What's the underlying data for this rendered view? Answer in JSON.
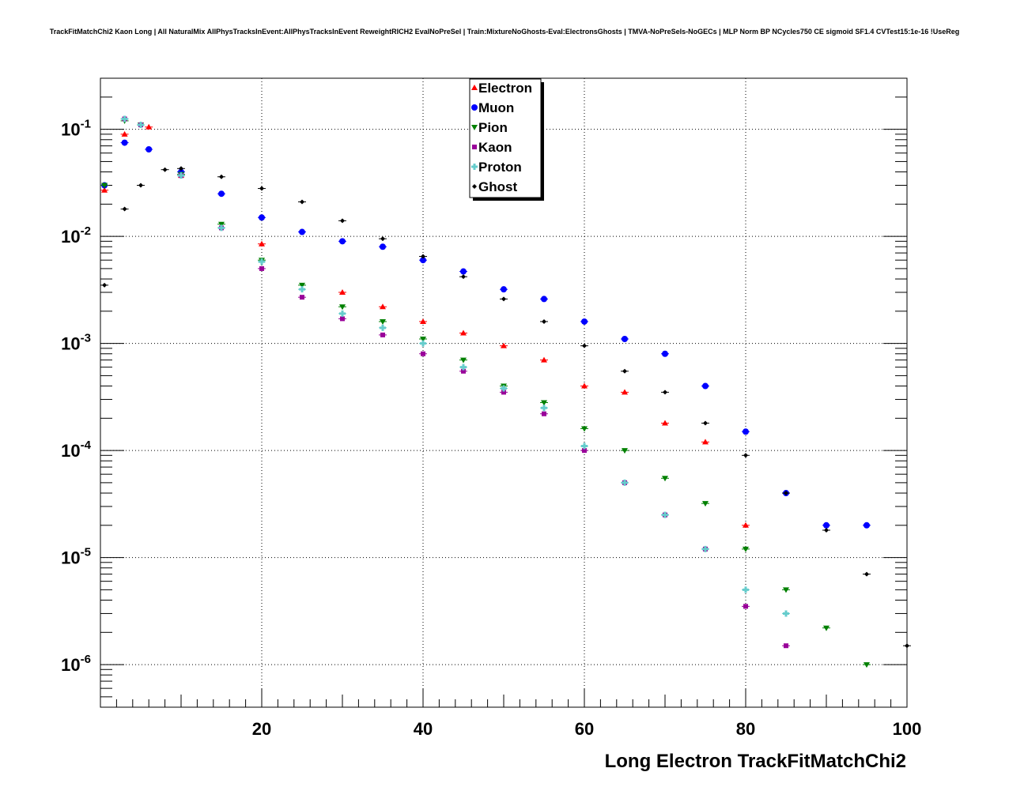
{
  "chart_data": {
    "type": "scatter",
    "title": "TrackFitMatchChi2 Kaon Long | All NaturalMix AllPhysTracksInEvent:AllPhysTracksInEvent ReweightRICH2 EvalNoPreSel | Train:MixtureNoGhosts-Eval:ElectronsGhosts | TMVA-NoPreSels-NoGECs | MLP Norm BP NCycles750 CE sigmoid SF1.4 CVTest15:1e-16 !UseReg",
    "xlabel": "Long Electron TrackFitMatchChi2",
    "ylabel": "",
    "xlim": [
      0,
      100
    ],
    "ylim": [
      4e-07,
      0.3
    ],
    "y_scale": "log",
    "grid": true,
    "legend_position": "top-center",
    "x_ticks": [
      20,
      40,
      60,
      80,
      100
    ],
    "y_ticks": [
      {
        "value": 0.1,
        "mantissa": "10",
        "exponent": "-1"
      },
      {
        "value": 0.01,
        "mantissa": "10",
        "exponent": "-2"
      },
      {
        "value": 0.001,
        "mantissa": "10",
        "exponent": "-3"
      },
      {
        "value": 0.0001,
        "mantissa": "10",
        "exponent": "-4"
      },
      {
        "value": 1e-05,
        "mantissa": "10",
        "exponent": "-5"
      },
      {
        "value": 1e-06,
        "mantissa": "10",
        "exponent": "-6"
      }
    ],
    "series": [
      {
        "name": "Electron",
        "color": "#ff0000",
        "marker": "triangle-up",
        "x": [
          0.5,
          3,
          6,
          10,
          20,
          30,
          35,
          40,
          45,
          50,
          55,
          60,
          65,
          70,
          75,
          80
        ],
        "y": [
          0.027,
          0.09,
          0.105,
          0.037,
          0.0085,
          0.003,
          0.0022,
          0.0016,
          0.00125,
          0.00095,
          0.0007,
          0.0004,
          0.00035,
          0.00018,
          0.00012,
          2e-05
        ]
      },
      {
        "name": "Muon",
        "color": "#0000ff",
        "marker": "circle",
        "x": [
          0.5,
          3,
          6,
          10,
          15,
          20,
          25,
          30,
          35,
          40,
          45,
          50,
          55,
          60,
          65,
          70,
          75,
          80,
          85,
          90,
          95
        ],
        "y": [
          0.03,
          0.075,
          0.065,
          0.04,
          0.025,
          0.015,
          0.011,
          0.009,
          0.008,
          0.006,
          0.0047,
          0.0032,
          0.0026,
          0.0016,
          0.0011,
          0.0008,
          0.0004,
          0.00015,
          4e-05,
          2e-05,
          2e-05
        ]
      },
      {
        "name": "Pion",
        "color": "#008000",
        "marker": "triangle-down",
        "x": [
          0.5,
          3,
          5,
          10,
          15,
          20,
          25,
          30,
          35,
          40,
          45,
          50,
          55,
          60,
          65,
          70,
          75,
          80,
          85,
          90,
          95
        ],
        "y": [
          0.03,
          0.12,
          0.11,
          0.038,
          0.013,
          0.006,
          0.0035,
          0.0022,
          0.0016,
          0.0011,
          0.0007,
          0.0004,
          0.00028,
          0.00016,
          0.0001,
          5.5e-05,
          3.2e-05,
          1.2e-05,
          5e-06,
          2.2e-06,
          1e-06
        ]
      },
      {
        "name": "Kaon",
        "color": "#990099",
        "marker": "square",
        "x": [
          3,
          5,
          10,
          15,
          20,
          25,
          30,
          35,
          40,
          45,
          50,
          55,
          60,
          65,
          70,
          75,
          80,
          85
        ],
        "y": [
          0.125,
          0.11,
          0.037,
          0.012,
          0.005,
          0.0027,
          0.0017,
          0.0012,
          0.0008,
          0.00055,
          0.00035,
          0.00022,
          0.0001,
          5e-05,
          2.5e-05,
          1.2e-05,
          3.5e-06,
          1.5e-06
        ]
      },
      {
        "name": "Proton",
        "color": "#66cccc",
        "marker": "cross",
        "x": [
          3,
          5,
          10,
          15,
          20,
          25,
          30,
          35,
          40,
          45,
          50,
          55,
          60,
          65,
          70,
          75,
          80,
          85
        ],
        "y": [
          0.125,
          0.11,
          0.037,
          0.012,
          0.0058,
          0.0032,
          0.0019,
          0.0014,
          0.001,
          0.0006,
          0.00038,
          0.00025,
          0.00011,
          5e-05,
          2.5e-05,
          1.2e-05,
          5e-06,
          3e-06
        ]
      },
      {
        "name": "Ghost",
        "color": "#000000",
        "marker": "diamond",
        "x": [
          0.5,
          3,
          5,
          8,
          10,
          15,
          20,
          25,
          30,
          35,
          40,
          45,
          50,
          55,
          60,
          65,
          70,
          75,
          80,
          85,
          90,
          95,
          100
        ],
        "y": [
          0.0035,
          0.018,
          0.03,
          0.042,
          0.043,
          0.036,
          0.028,
          0.021,
          0.014,
          0.0095,
          0.0065,
          0.0042,
          0.0026,
          0.0016,
          0.00095,
          0.00055,
          0.00035,
          0.00018,
          9e-05,
          4e-05,
          1.8e-05,
          7e-06,
          1.5e-06
        ]
      }
    ]
  }
}
